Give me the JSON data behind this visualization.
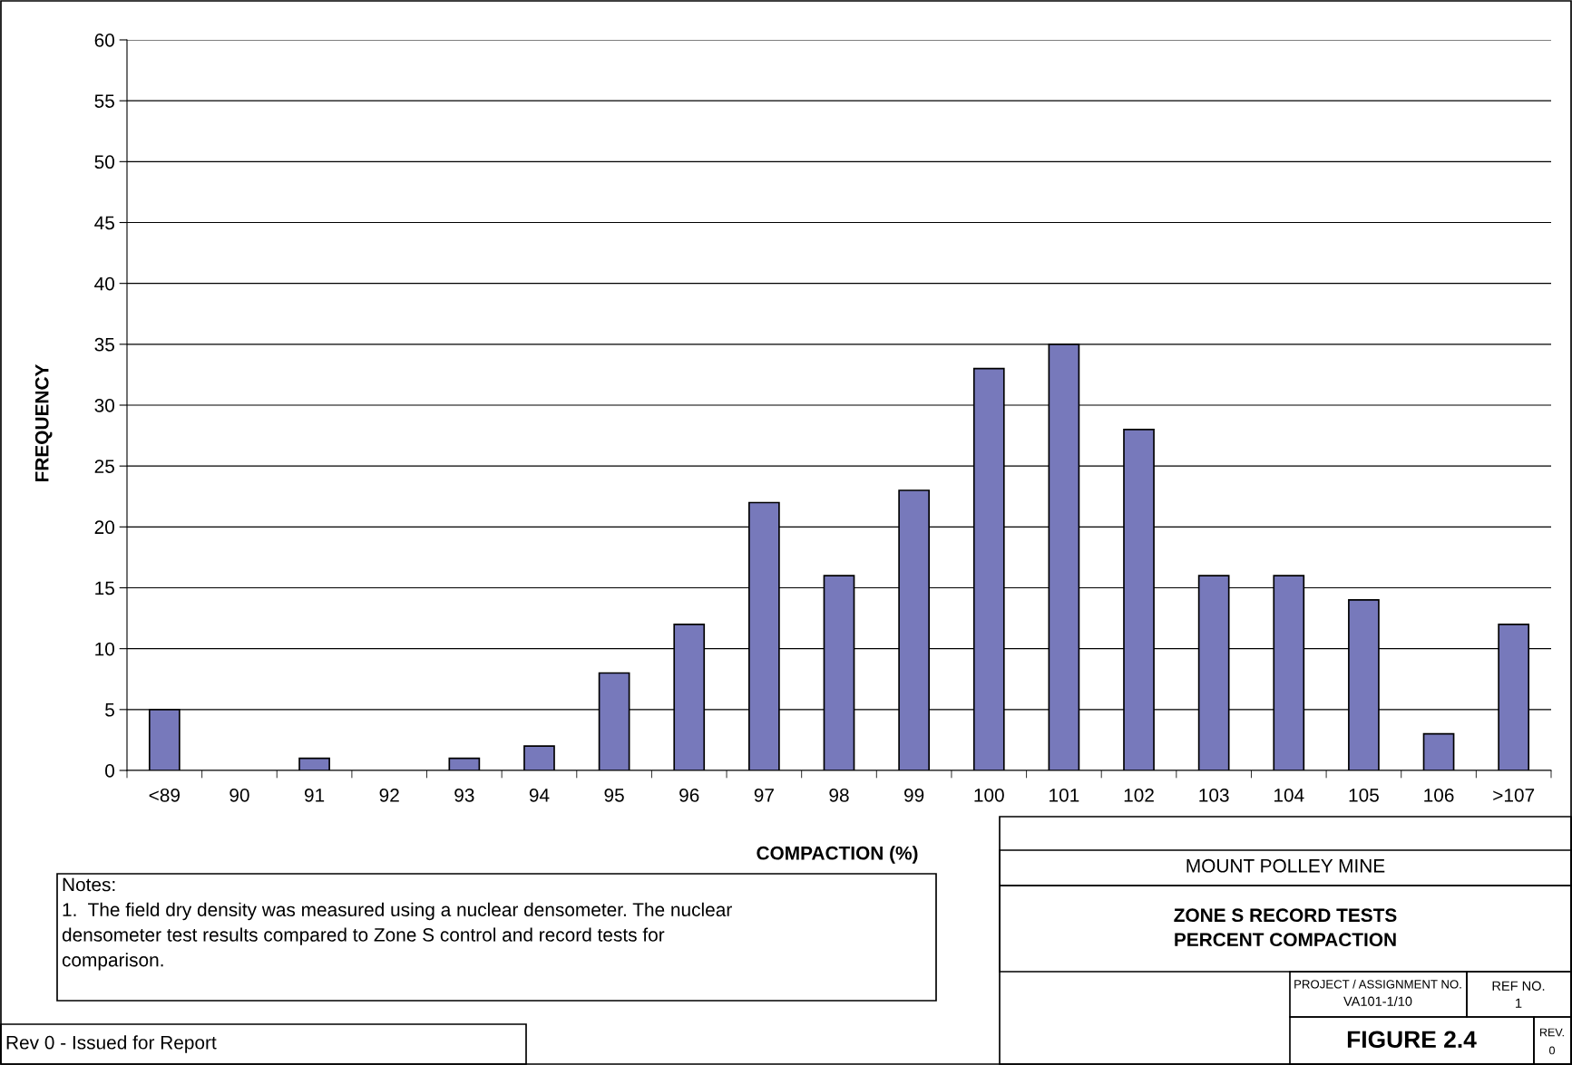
{
  "chart_data": {
    "type": "bar",
    "title": "ZONE S RECORD TESTS\nPERCENT COMPACTION",
    "xlabel": "COMPACTION (%)",
    "ylabel": "FREQUENCY",
    "categories": [
      "<89",
      "90",
      "91",
      "92",
      "93",
      "94",
      "95",
      "96",
      "97",
      "98",
      "99",
      "100",
      "101",
      "102",
      "103",
      "104",
      "105",
      "106",
      ">107"
    ],
    "values": [
      5,
      0,
      1,
      0,
      1,
      2,
      8,
      12,
      22,
      16,
      23,
      33,
      35,
      28,
      16,
      16,
      14,
      3,
      12
    ],
    "color": "#7779bb",
    "ylim": [
      0,
      60
    ],
    "yticks": [
      0,
      5,
      10,
      15,
      20,
      25,
      30,
      35,
      40,
      45,
      50,
      55,
      60
    ],
    "grid": "y",
    "legend": false,
    "annotations": [
      "Notes:\n1.  The field dry density was measured using a nuclear densometer. The nuclear\ndensometer test results compared to Zone S control and record tests for\ncomparison.",
      "Rev 0 - Issued for Report",
      "MOUNT POLLEY MINE",
      "PROJECT / ASSIGNMENT NO.",
      "VA101-1/10",
      "REF NO.",
      "1",
      "FIGURE 2.4",
      "REV.",
      "0"
    ]
  }
}
